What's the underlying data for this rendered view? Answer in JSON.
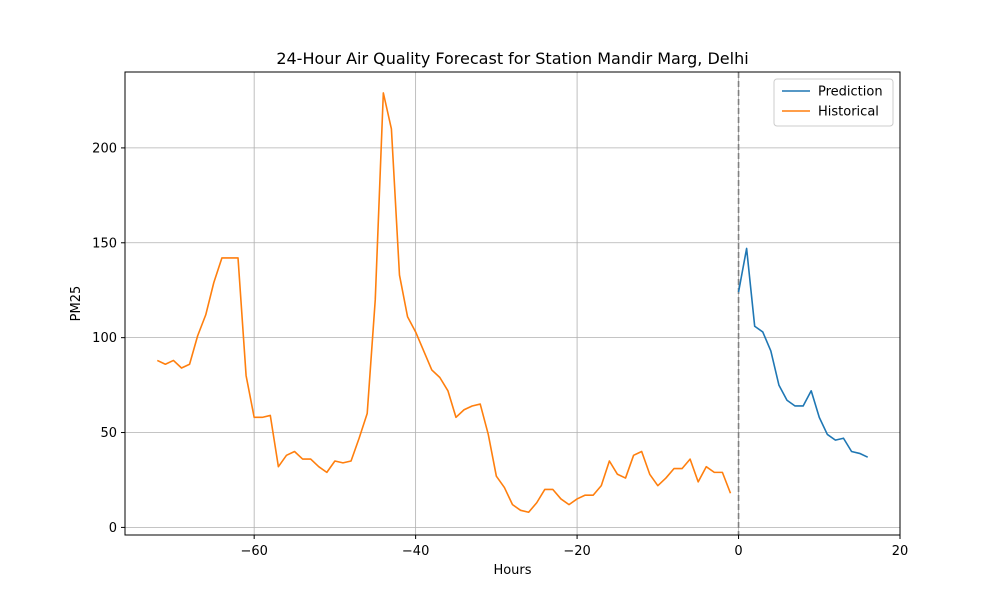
{
  "chart_data": {
    "type": "line",
    "title": "24-Hour Air Quality Forecast for Station Mandir Marg, Delhi",
    "xlabel": "Hours",
    "ylabel": "PM25",
    "xlim": [
      -76,
      20
    ],
    "ylim": [
      -4,
      240
    ],
    "x_ticks": [
      -60,
      -40,
      -20,
      0,
      20
    ],
    "y_ticks": [
      0,
      50,
      100,
      150,
      200
    ],
    "grid": true,
    "legend_position": "top-right",
    "vline": {
      "x": 0,
      "style": "dashed",
      "color": "#808080"
    },
    "series": [
      {
        "name": "Prediction",
        "color": "#1f77b4",
        "x": [
          0,
          1,
          2,
          3,
          4,
          5,
          6,
          7,
          8,
          9,
          10,
          11,
          12,
          13,
          14,
          15,
          16
        ],
        "y": [
          124,
          147,
          106,
          103,
          93,
          75,
          67,
          64,
          64,
          72,
          58,
          49,
          46,
          47,
          40,
          39,
          37
        ]
      },
      {
        "name": "Historical",
        "color": "#ff7f0e",
        "x": [
          -72,
          -71,
          -70,
          -69,
          -68,
          -67,
          -66,
          -65,
          -64,
          -63,
          -62,
          -61,
          -60,
          -59,
          -58,
          -57,
          -56,
          -55,
          -54,
          -53,
          -52,
          -51,
          -50,
          -49,
          -48,
          -47,
          -46,
          -45,
          -44,
          -43,
          -42,
          -41,
          -40,
          -39,
          -38,
          -37,
          -36,
          -35,
          -34,
          -33,
          -32,
          -31,
          -30,
          -29,
          -28,
          -27,
          -26,
          -25,
          -24,
          -23,
          -22,
          -21,
          -20,
          -19,
          -18,
          -17,
          -16,
          -15,
          -14,
          -13,
          -12,
          -11,
          -10,
          -9,
          -8,
          -7,
          -6,
          -5,
          -4,
          -3,
          -2,
          -1
        ],
        "y": [
          88,
          86,
          88,
          84,
          86,
          101,
          112,
          129,
          142,
          142,
          142,
          80,
          58,
          58,
          59,
          32,
          38,
          40,
          36,
          36,
          32,
          29,
          35,
          34,
          35,
          47,
          60,
          120,
          229,
          210,
          133,
          111,
          103,
          93,
          83,
          79,
          72,
          58,
          62,
          64,
          65,
          49,
          27,
          21,
          12,
          9,
          8,
          13,
          20,
          20,
          15,
          12,
          15,
          17,
          17,
          22,
          35,
          28,
          26,
          38,
          40,
          28,
          22,
          26,
          31,
          31,
          36,
          24,
          32,
          29,
          29,
          18
        ]
      }
    ]
  }
}
